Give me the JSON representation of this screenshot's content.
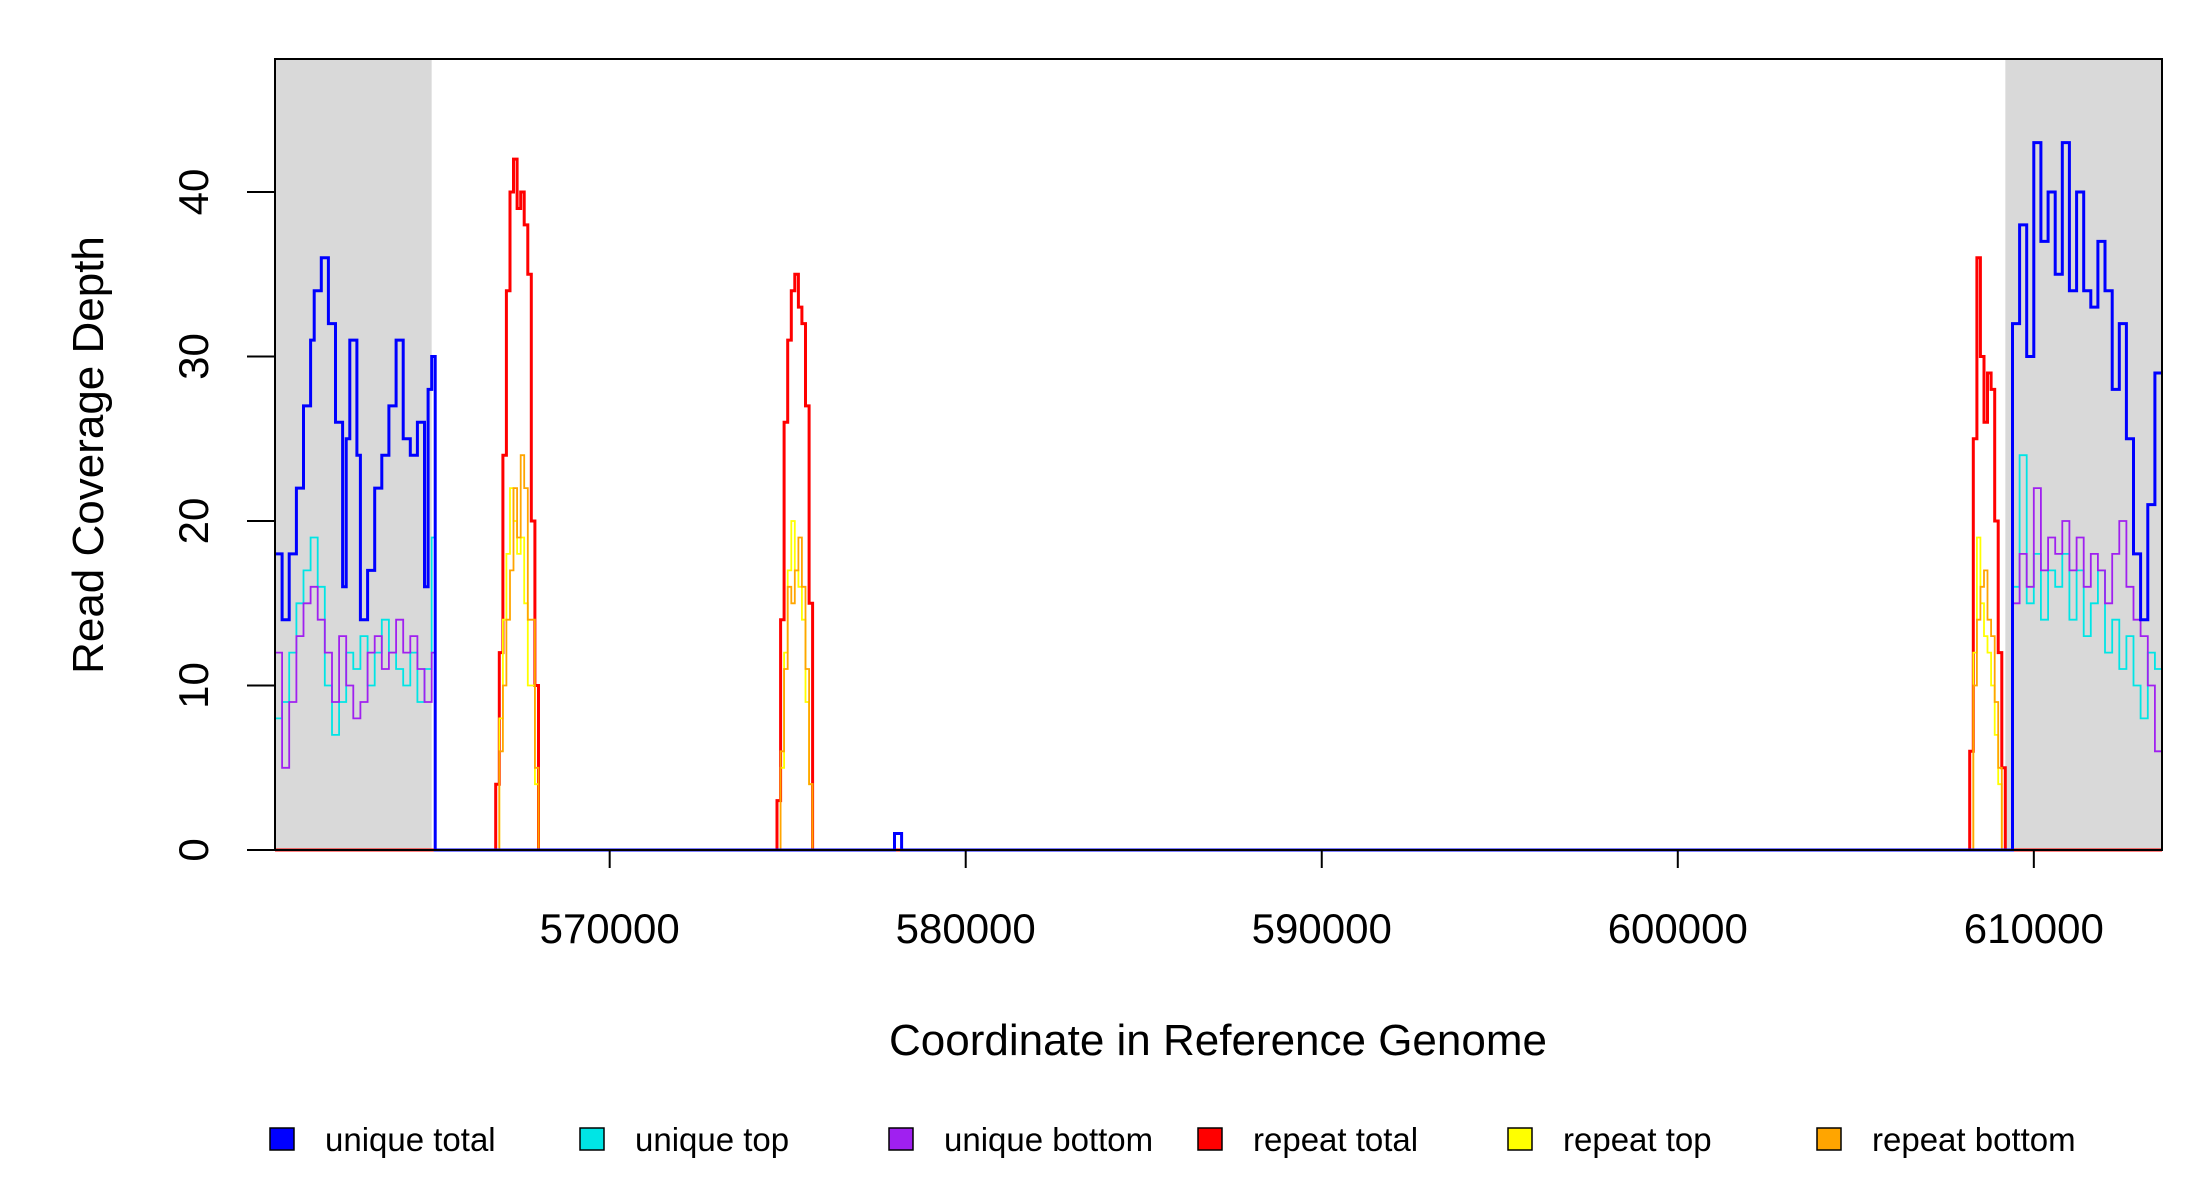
{
  "chart_data": {
    "type": "line",
    "style": "step",
    "title": "",
    "xlabel": "Coordinate in Reference Genome",
    "ylabel": "Read Coverage Depth",
    "xlim": [
      560600,
      613600
    ],
    "ylim": [
      0,
      47
    ],
    "x_ticks": [
      570000,
      580000,
      590000,
      600000,
      610000
    ],
    "y_ticks": [
      0,
      10,
      20,
      30,
      40
    ],
    "grid": false,
    "shaded_regions": [
      {
        "x": [
          560600,
          565000
        ],
        "color": "#d9d9d9"
      },
      {
        "x": [
          609200,
          613600
        ],
        "color": "#d9d9d9"
      }
    ],
    "legend_position": "bottom",
    "series": [
      {
        "name": "unique total",
        "color": "#0000ff",
        "points": [
          [
            560600,
            18
          ],
          [
            560800,
            14
          ],
          [
            561000,
            18
          ],
          [
            561200,
            22
          ],
          [
            561400,
            27
          ],
          [
            561600,
            31
          ],
          [
            561700,
            34
          ],
          [
            561900,
            36
          ],
          [
            562100,
            32
          ],
          [
            562300,
            26
          ],
          [
            562500,
            16
          ],
          [
            562600,
            25
          ],
          [
            562700,
            31
          ],
          [
            562900,
            24
          ],
          [
            563000,
            14
          ],
          [
            563200,
            17
          ],
          [
            563400,
            22
          ],
          [
            563600,
            24
          ],
          [
            563800,
            27
          ],
          [
            564000,
            31
          ],
          [
            564200,
            25
          ],
          [
            564400,
            24
          ],
          [
            564600,
            26
          ],
          [
            564800,
            16
          ],
          [
            564900,
            28
          ],
          [
            565000,
            30
          ],
          [
            565100,
            0
          ],
          [
            578000,
            1
          ],
          [
            578200,
            0
          ],
          [
            609300,
            0
          ],
          [
            609400,
            32
          ],
          [
            609600,
            38
          ],
          [
            609800,
            30
          ],
          [
            610000,
            43
          ],
          [
            610200,
            37
          ],
          [
            610400,
            40
          ],
          [
            610600,
            35
          ],
          [
            610800,
            43
          ],
          [
            611000,
            34
          ],
          [
            611200,
            40
          ],
          [
            611400,
            34
          ],
          [
            611600,
            33
          ],
          [
            611800,
            37
          ],
          [
            612000,
            34
          ],
          [
            612200,
            28
          ],
          [
            612400,
            32
          ],
          [
            612600,
            25
          ],
          [
            612800,
            18
          ],
          [
            613000,
            14
          ],
          [
            613200,
            21
          ],
          [
            613400,
            29
          ],
          [
            613600,
            29
          ]
        ]
      },
      {
        "name": "unique top",
        "color": "#00e5e5",
        "points": [
          [
            560600,
            8
          ],
          [
            560800,
            9
          ],
          [
            561000,
            12
          ],
          [
            561200,
            15
          ],
          [
            561400,
            17
          ],
          [
            561600,
            19
          ],
          [
            561800,
            16
          ],
          [
            562000,
            10
          ],
          [
            562200,
            7
          ],
          [
            562400,
            9
          ],
          [
            562600,
            12
          ],
          [
            562800,
            11
          ],
          [
            563000,
            13
          ],
          [
            563200,
            10
          ],
          [
            563400,
            12
          ],
          [
            563600,
            14
          ],
          [
            563800,
            12
          ],
          [
            564000,
            11
          ],
          [
            564200,
            10
          ],
          [
            564400,
            12
          ],
          [
            564600,
            9
          ],
          [
            564800,
            11
          ],
          [
            565000,
            19
          ],
          [
            565100,
            0
          ],
          [
            609300,
            0
          ],
          [
            609400,
            16
          ],
          [
            609600,
            24
          ],
          [
            609800,
            15
          ],
          [
            610000,
            18
          ],
          [
            610200,
            14
          ],
          [
            610400,
            17
          ],
          [
            610600,
            16
          ],
          [
            610800,
            18
          ],
          [
            611000,
            14
          ],
          [
            611200,
            17
          ],
          [
            611400,
            13
          ],
          [
            611600,
            15
          ],
          [
            611800,
            17
          ],
          [
            612000,
            12
          ],
          [
            612200,
            14
          ],
          [
            612400,
            11
          ],
          [
            612600,
            13
          ],
          [
            612800,
            10
          ],
          [
            613000,
            8
          ],
          [
            613200,
            12
          ],
          [
            613400,
            11
          ],
          [
            613600,
            11
          ]
        ]
      },
      {
        "name": "unique bottom",
        "color": "#a020f0",
        "points": [
          [
            560600,
            12
          ],
          [
            560800,
            5
          ],
          [
            561000,
            9
          ],
          [
            561200,
            13
          ],
          [
            561400,
            15
          ],
          [
            561600,
            16
          ],
          [
            561800,
            14
          ],
          [
            562000,
            12
          ],
          [
            562200,
            9
          ],
          [
            562400,
            13
          ],
          [
            562600,
            10
          ],
          [
            562800,
            8
          ],
          [
            563000,
            9
          ],
          [
            563200,
            12
          ],
          [
            563400,
            13
          ],
          [
            563600,
            11
          ],
          [
            563800,
            12
          ],
          [
            564000,
            14
          ],
          [
            564200,
            12
          ],
          [
            564400,
            13
          ],
          [
            564600,
            11
          ],
          [
            564800,
            9
          ],
          [
            565000,
            12
          ],
          [
            565100,
            0
          ],
          [
            609300,
            0
          ],
          [
            609400,
            15
          ],
          [
            609600,
            18
          ],
          [
            609800,
            16
          ],
          [
            610000,
            22
          ],
          [
            610200,
            17
          ],
          [
            610400,
            19
          ],
          [
            610600,
            18
          ],
          [
            610800,
            20
          ],
          [
            611000,
            17
          ],
          [
            611200,
            19
          ],
          [
            611400,
            16
          ],
          [
            611600,
            18
          ],
          [
            611800,
            17
          ],
          [
            612000,
            15
          ],
          [
            612200,
            18
          ],
          [
            612400,
            20
          ],
          [
            612600,
            16
          ],
          [
            612800,
            14
          ],
          [
            613000,
            13
          ],
          [
            613200,
            10
          ],
          [
            613400,
            6
          ],
          [
            613600,
            6
          ]
        ]
      },
      {
        "name": "repeat total",
        "color": "#ff0000",
        "points": [
          [
            560600,
            0
          ],
          [
            566800,
            0
          ],
          [
            566800,
            4
          ],
          [
            566900,
            12
          ],
          [
            567000,
            24
          ],
          [
            567100,
            34
          ],
          [
            567200,
            40
          ],
          [
            567300,
            42
          ],
          [
            567400,
            39
          ],
          [
            567500,
            40
          ],
          [
            567600,
            38
          ],
          [
            567700,
            35
          ],
          [
            567800,
            20
          ],
          [
            567900,
            10
          ],
          [
            568000,
            0
          ],
          [
            574700,
            0
          ],
          [
            574700,
            3
          ],
          [
            574800,
            14
          ],
          [
            574900,
            26
          ],
          [
            575000,
            31
          ],
          [
            575100,
            34
          ],
          [
            575200,
            35
          ],
          [
            575300,
            33
          ],
          [
            575400,
            32
          ],
          [
            575500,
            27
          ],
          [
            575600,
            15
          ],
          [
            575700,
            0
          ],
          [
            608200,
            0
          ],
          [
            608200,
            6
          ],
          [
            608300,
            25
          ],
          [
            608400,
            36
          ],
          [
            608500,
            30
          ],
          [
            608600,
            26
          ],
          [
            608700,
            29
          ],
          [
            608800,
            28
          ],
          [
            608900,
            20
          ],
          [
            609000,
            12
          ],
          [
            609100,
            5
          ],
          [
            609200,
            0
          ],
          [
            613600,
            0
          ]
        ]
      },
      {
        "name": "repeat top",
        "color": "#ffff00",
        "points": [
          [
            560600,
            0
          ],
          [
            566800,
            0
          ],
          [
            566900,
            8
          ],
          [
            567000,
            14
          ],
          [
            567100,
            18
          ],
          [
            567200,
            22
          ],
          [
            567300,
            20
          ],
          [
            567400,
            18
          ],
          [
            567500,
            19
          ],
          [
            567600,
            15
          ],
          [
            567700,
            10
          ],
          [
            567900,
            4
          ],
          [
            568000,
            0
          ],
          [
            574700,
            0
          ],
          [
            574800,
            5
          ],
          [
            574900,
            12
          ],
          [
            575000,
            17
          ],
          [
            575100,
            20
          ],
          [
            575200,
            17
          ],
          [
            575300,
            16
          ],
          [
            575400,
            14
          ],
          [
            575500,
            9
          ],
          [
            575600,
            4
          ],
          [
            575700,
            0
          ],
          [
            608200,
            0
          ],
          [
            608300,
            12
          ],
          [
            608400,
            19
          ],
          [
            608500,
            15
          ],
          [
            608600,
            13
          ],
          [
            608700,
            12
          ],
          [
            608800,
            10
          ],
          [
            608900,
            7
          ],
          [
            609000,
            4
          ],
          [
            609100,
            0
          ],
          [
            613600,
            0
          ]
        ]
      },
      {
        "name": "repeat bottom",
        "color": "#ffa500",
        "points": [
          [
            560600,
            0
          ],
          [
            566800,
            0
          ],
          [
            566900,
            6
          ],
          [
            567000,
            10
          ],
          [
            567100,
            14
          ],
          [
            567200,
            17
          ],
          [
            567300,
            22
          ],
          [
            567400,
            19
          ],
          [
            567500,
            24
          ],
          [
            567600,
            22
          ],
          [
            567700,
            14
          ],
          [
            567900,
            5
          ],
          [
            568000,
            0
          ],
          [
            574700,
            0
          ],
          [
            574800,
            6
          ],
          [
            574900,
            11
          ],
          [
            575000,
            16
          ],
          [
            575100,
            15
          ],
          [
            575200,
            17
          ],
          [
            575300,
            19
          ],
          [
            575400,
            16
          ],
          [
            575500,
            11
          ],
          [
            575600,
            4
          ],
          [
            575700,
            0
          ],
          [
            608200,
            0
          ],
          [
            608300,
            10
          ],
          [
            608400,
            14
          ],
          [
            608500,
            16
          ],
          [
            608600,
            17
          ],
          [
            608700,
            14
          ],
          [
            608800,
            13
          ],
          [
            608900,
            9
          ],
          [
            609000,
            5
          ],
          [
            609100,
            0
          ],
          [
            613600,
            0
          ]
        ]
      }
    ]
  }
}
